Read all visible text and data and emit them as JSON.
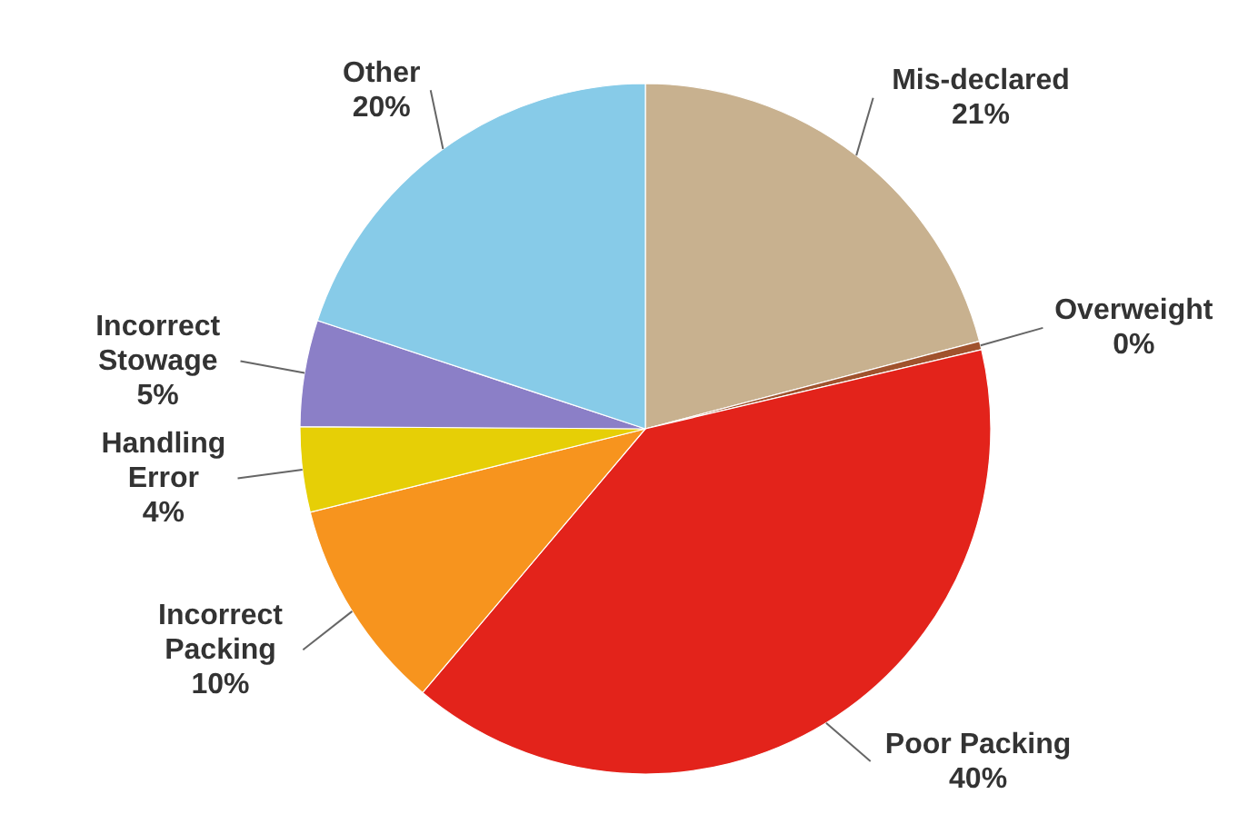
{
  "chart_data": {
    "type": "pie",
    "categories": [
      "Mis-declared",
      "Overweight",
      "Poor Packing",
      "Incorrect Packing",
      "Handling Error",
      "Incorrect Stowage",
      "Other"
    ],
    "values": [
      21,
      0.4,
      40,
      10,
      4,
      5,
      20
    ],
    "value_labels": [
      "21%",
      "0%",
      "40%",
      "10%",
      "4%",
      "5%",
      "20%"
    ],
    "colors": [
      "#c8b18f",
      "#a0522d",
      "#e3231b",
      "#f7941e",
      "#e6cf06",
      "#8b7fc7",
      "#87cbe8"
    ]
  }
}
